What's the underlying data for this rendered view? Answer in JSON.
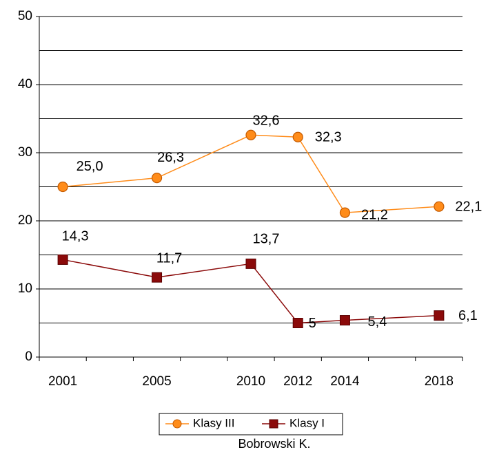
{
  "chart_data": {
    "type": "line",
    "categories": [
      "2001",
      "2005",
      "2010",
      "2012",
      "2014",
      "2018"
    ],
    "series": [
      {
        "name": "Klasy III",
        "color": "#ff8c1a",
        "values": [
          25.0,
          26.3,
          32.6,
          32.3,
          21.2,
          22.1
        ],
        "value_labels": [
          "25,0",
          "26,3",
          "32,6",
          "32,3",
          "21,2",
          "22,1"
        ]
      },
      {
        "name": "Klasy I",
        "color": "#8b0a0a",
        "values": [
          14.3,
          11.7,
          13.7,
          5,
          5.4,
          6.1
        ],
        "value_labels": [
          "14,3",
          "11,7",
          "13,7",
          "5",
          "5,4",
          "6,1"
        ]
      }
    ],
    "ylim": [
      0,
      50
    ],
    "yticks": [
      0,
      10,
      20,
      30,
      40,
      50
    ],
    "minor_grid": [
      5,
      15,
      25,
      35,
      45
    ],
    "grid": true,
    "legend": "bottom",
    "caption": "Bobrowski K."
  }
}
